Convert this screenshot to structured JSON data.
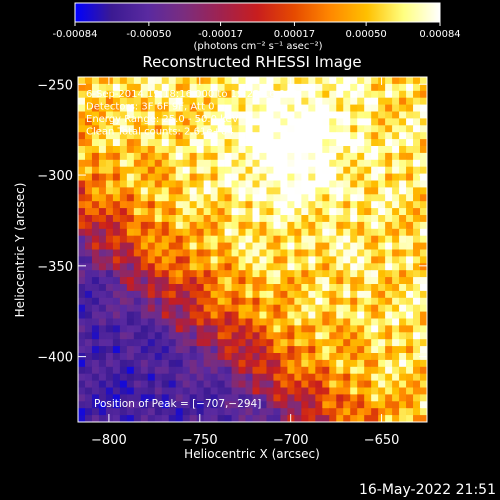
{
  "colors": {
    "background": "#000000",
    "foreground": "#ffffff",
    "colormap": [
      "#0000ff",
      "#3b1a92",
      "#5a2aa0",
      "#7b2d7e",
      "#a0224f",
      "#c81e1e",
      "#e64a00",
      "#ff8800",
      "#ffc000",
      "#ffff80",
      "#ffffff"
    ]
  },
  "colorbar": {
    "tick_labels": [
      "-0.00084",
      "-0.00050",
      "-0.00017",
      "0.00017",
      "0.00050",
      "0.00084"
    ],
    "tick_values": [
      -0.00084,
      -0.0005,
      -0.00017,
      0.00017,
      0.0005,
      0.00084
    ],
    "range": [
      -0.00084,
      0.00084
    ],
    "unit_label": "(photons cm⁻² s⁻¹ asec⁻²)"
  },
  "chart_data": {
    "type": "heatmap",
    "title": "Reconstructed RHESSI Image",
    "xlabel": "Heliocentric X (arcsec)",
    "ylabel": "Heliocentric Y (arcsec)",
    "xlim": [
      -817,
      -625
    ],
    "ylim": [
      -436,
      -246
    ],
    "x_ticks": [
      -800,
      -750,
      -700,
      -650
    ],
    "x_tick_labels": [
      "−800",
      "−750",
      "−700",
      "−650"
    ],
    "y_ticks": [
      -400,
      -350,
      -300,
      -250
    ],
    "y_tick_labels": [
      "−400",
      "−350",
      "−300",
      "−250"
    ],
    "annotations": [
      "6-Sep-2014 19:18:16.000 to 19:22:16.000",
      "Detectors: 3F 6F 9F, Att 0",
      "Energy Range: 25.0 - 50.0 keV",
      "Clean   Total counts: 2.61e+04"
    ],
    "peak_label": "Position of Peak = [−707,−294]",
    "peak": [
      -707,
      -294
    ]
  },
  "footer": {
    "date": "16-May-2022 21:51"
  }
}
